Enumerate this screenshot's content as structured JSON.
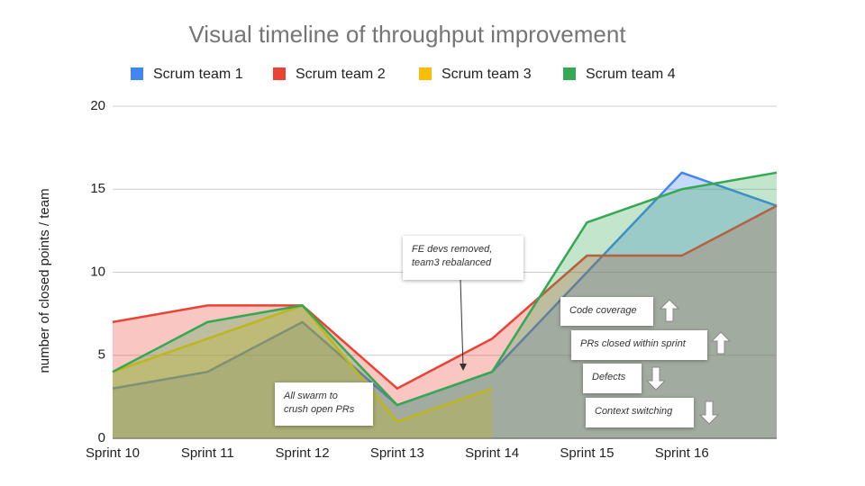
{
  "chart_data": {
    "type": "area",
    "title": "Visual timeline of throughput improvement",
    "y_label": "number of closed points / team",
    "categories": [
      "Sprint 10",
      "Sprint 11",
      "Sprint 12",
      "Sprint 13",
      "Sprint 14",
      "Sprint 15",
      "Sprint 16",
      null
    ],
    "series": [
      {
        "name": "Scrum team 1",
        "color": "#4285f4",
        "values": [
          3,
          4,
          7,
          2,
          4,
          10,
          16,
          14
        ]
      },
      {
        "name": "Scrum team 2",
        "color": "#ea4335",
        "values": [
          7,
          8,
          8,
          3,
          6,
          11,
          11,
          14
        ]
      },
      {
        "name": "Scrum team 3",
        "color": "#fbbc04",
        "values": [
          4,
          6,
          8,
          1,
          3,
          null,
          null,
          null
        ]
      },
      {
        "name": "Scrum team 4",
        "color": "#34a853",
        "values": [
          4,
          7,
          8,
          2,
          4,
          13,
          15,
          16
        ]
      }
    ],
    "ylim": [
      0,
      20
    ],
    "yticks": [
      0,
      5,
      10,
      15,
      20
    ],
    "grid": true,
    "legend": "top",
    "annotations": [
      "FE devs removed, team3 rebalanced",
      "All swarm to crush open PRs",
      "Code coverage",
      "PRs closed within sprint",
      "Defects",
      "Context switching"
    ]
  }
}
